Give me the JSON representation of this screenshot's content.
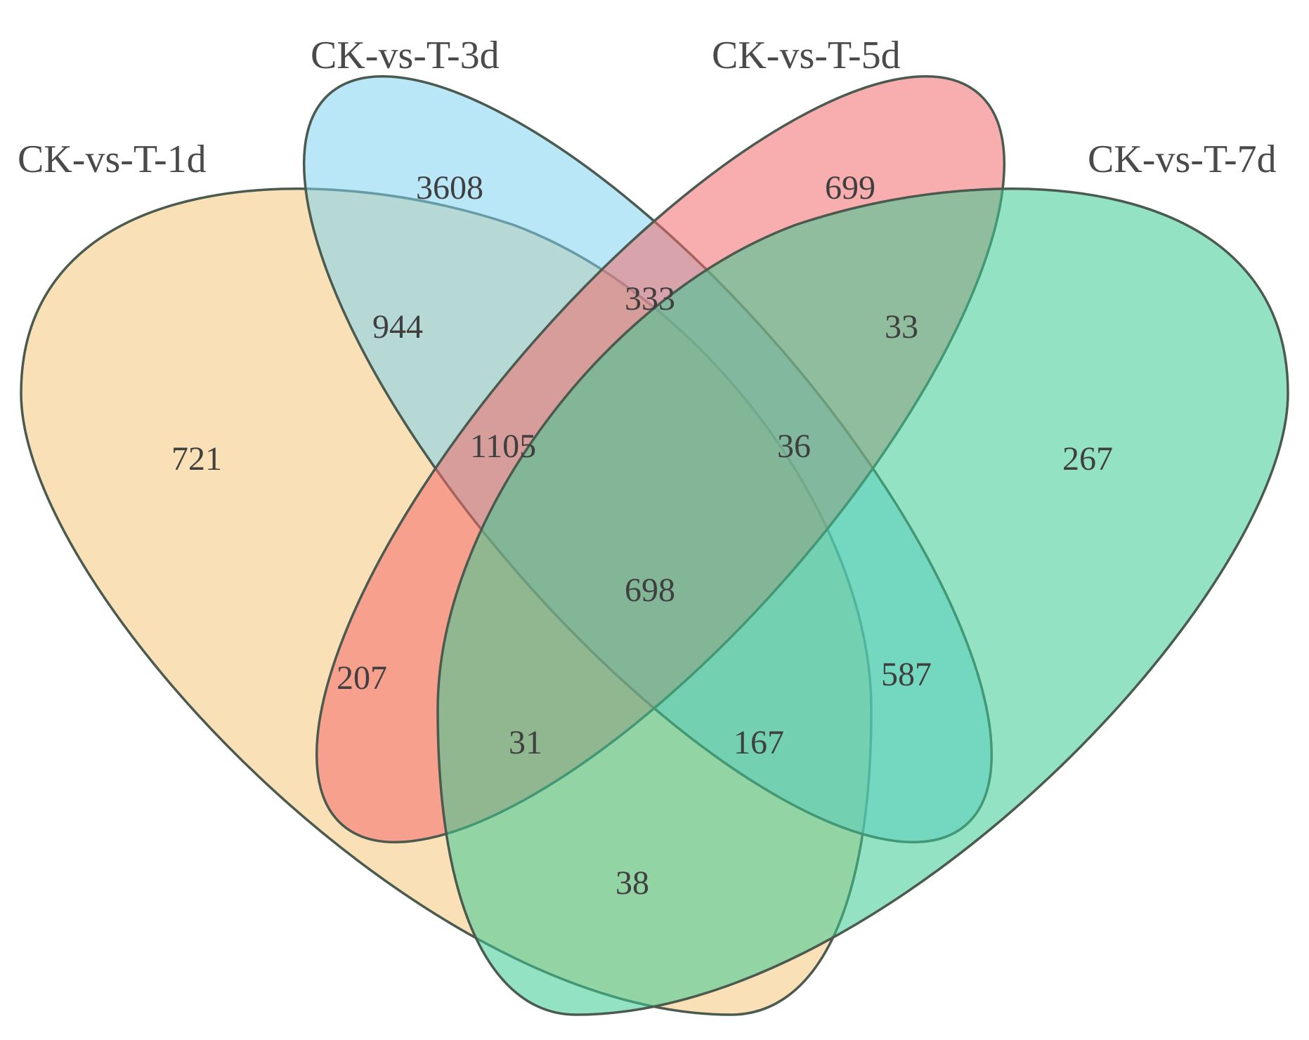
{
  "sets": [
    {
      "id": "1d",
      "label": "CK-vs-T-1d",
      "color": "#F5C77A"
    },
    {
      "id": "3d",
      "label": "CK-vs-T-3d",
      "color": "#7FD3F0"
    },
    {
      "id": "5d",
      "label": "CK-vs-T-5d",
      "color": "#F26B6B"
    },
    {
      "id": "7d",
      "label": "CK-vs-T-7d",
      "color": "#3CCB94"
    }
  ],
  "regions": [
    {
      "id": "1d-only",
      "sets": [
        "1d"
      ],
      "count": "721"
    },
    {
      "id": "3d-only",
      "sets": [
        "3d"
      ],
      "count": "3608"
    },
    {
      "id": "5d-only",
      "sets": [
        "5d"
      ],
      "count": "699"
    },
    {
      "id": "7d-only",
      "sets": [
        "7d"
      ],
      "count": "267"
    },
    {
      "id": "1d-3d",
      "sets": [
        "1d",
        "3d"
      ],
      "count": "944"
    },
    {
      "id": "3d-5d",
      "sets": [
        "3d",
        "5d"
      ],
      "count": "333"
    },
    {
      "id": "5d-7d",
      "sets": [
        "5d",
        "7d"
      ],
      "count": "33"
    },
    {
      "id": "1d-3d-5d",
      "sets": [
        "1d",
        "3d",
        "5d"
      ],
      "count": "1105"
    },
    {
      "id": "3d-5d-7d",
      "sets": [
        "3d",
        "5d",
        "7d"
      ],
      "count": "36"
    },
    {
      "id": "all",
      "sets": [
        "1d",
        "3d",
        "5d",
        "7d"
      ],
      "count": "698"
    },
    {
      "id": "1d-5d",
      "sets": [
        "1d",
        "5d"
      ],
      "count": "207"
    },
    {
      "id": "3d-7d",
      "sets": [
        "3d",
        "7d"
      ],
      "count": "587"
    },
    {
      "id": "1d-5d-7d",
      "sets": [
        "1d",
        "5d",
        "7d"
      ],
      "count": "31"
    },
    {
      "id": "1d-3d-7d",
      "sets": [
        "1d",
        "3d",
        "7d"
      ],
      "count": "167"
    },
    {
      "id": "1d-7d",
      "sets": [
        "1d",
        "7d"
      ],
      "count": "38"
    }
  ]
}
